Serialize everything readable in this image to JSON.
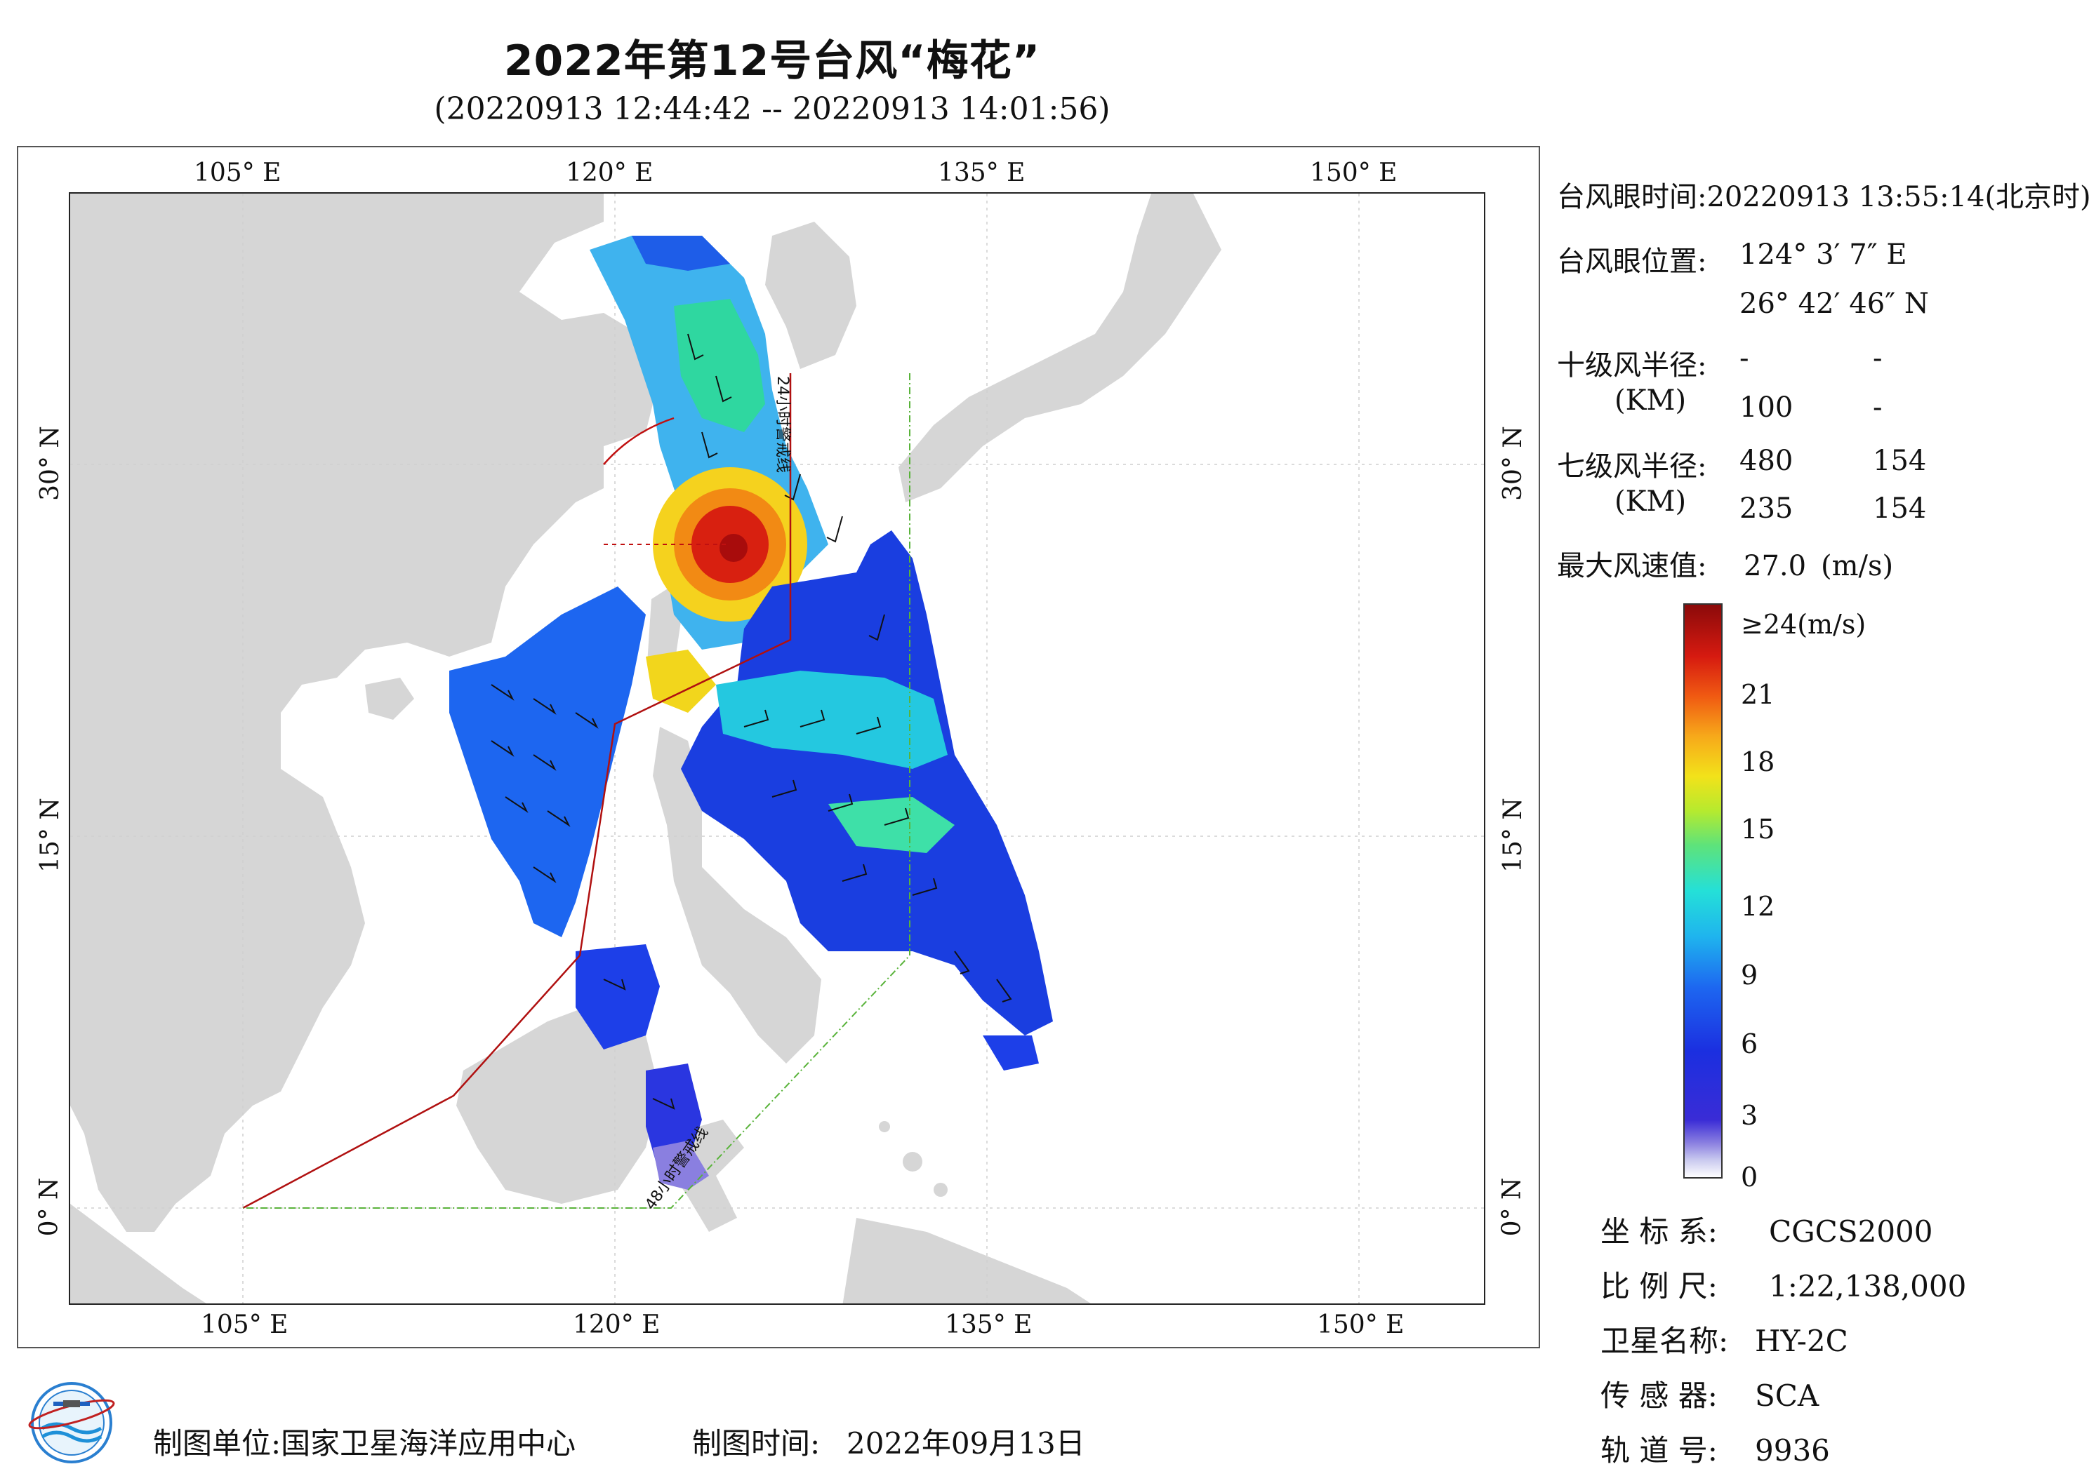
{
  "header": {
    "title": "2022年第12号台风“梅花”",
    "subtitle": "(20220913 12:44:42 -- 20220913 14:01:56)"
  },
  "map": {
    "lon_ticks": [
      "105° E",
      "120° E",
      "135° E",
      "150° E"
    ],
    "lat_ticks": [
      "30° N",
      "15° N",
      "0° N"
    ],
    "line_labels": [
      "24小时警戒线",
      "48小时警戒线"
    ],
    "colors": {
      "land": "#d8d8d8",
      "sea": "#ffffff",
      "warning_24h": "#b01010",
      "warning_48h": "#59b33a"
    }
  },
  "info_panel": {
    "eye_time_label": "台风眼时间:",
    "eye_time_value": "20220913 13:55:14(北京时)",
    "eye_pos_label": "台风眼位置:",
    "eye_lon": "124° 3′ 7″ E",
    "eye_lat": "26° 42′ 46″ N",
    "r10_label": "十级风半径:",
    "r10_unit": "(KM)",
    "r10_values": [
      [
        "-",
        "-"
      ],
      [
        "100",
        "-"
      ]
    ],
    "r7_label": "七级风半径:",
    "r7_unit": "(KM)",
    "r7_values": [
      [
        "480",
        "154"
      ],
      [
        "235",
        "154"
      ]
    ],
    "max_wind_label": "最大风速值:",
    "max_wind_value": "27.0",
    "max_wind_unit": "(m/s)"
  },
  "colorbar": {
    "labels": [
      "≥24(m/s)",
      "21",
      "18",
      "15",
      "12",
      "9",
      "6",
      "3",
      "0"
    ]
  },
  "meta_info": {
    "crs_label": "坐 标 系:",
    "crs_value": "CGCS2000",
    "scale_label": "比 例 尺:",
    "scale_value": "1:22,138,000",
    "satellite_label": "卫星名称:",
    "satellite_value": "HY-2C",
    "sensor_label": "传 感 器:",
    "sensor_value": "SCA",
    "orbit_label": "轨 道 号:",
    "orbit_value": "9936"
  },
  "footer": {
    "producer_label": "制图单位:",
    "producer_value": "国家卫星海洋应用中心",
    "date_label": "制图时间:",
    "date_value": "2022年09月13日"
  }
}
